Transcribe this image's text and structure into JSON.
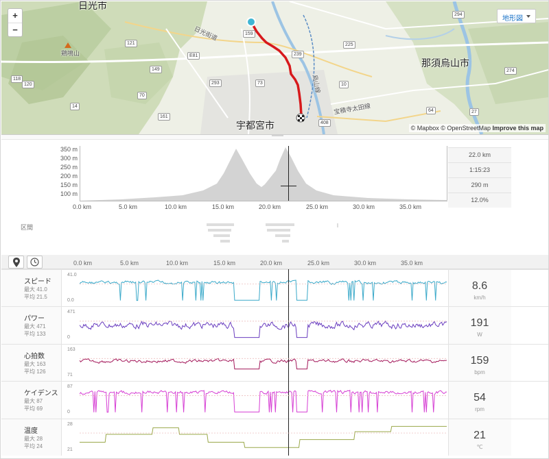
{
  "map": {
    "zoom_in": "+",
    "zoom_out": "−",
    "map_type": "地形図",
    "attribution_1": "© Mapbox © OpenStreetMap ",
    "attribution_2": "Improve this map",
    "labels": {
      "city_main": "宇都宮市",
      "city_east": "那須烏山市",
      "city_nw": "日光市",
      "mountain": "鶏鳴山"
    },
    "road_numbers": [
      "159",
      "121",
      "239",
      "149",
      "293",
      "73",
      "70",
      "225",
      "10",
      "408",
      "294",
      "274",
      "64",
      "27",
      "161",
      "14",
      "120",
      "118"
    ],
    "road_labels": [
      "E81",
      "日光街道",
      "宝積寺太田線",
      "烏山線"
    ]
  },
  "elevation": {
    "y_ticks": [
      "350 m",
      "300 m",
      "250 m",
      "200 m",
      "150 m",
      "100 m"
    ],
    "x_ticks": [
      "0.0 km",
      "5.0 km",
      "10.0 km",
      "15.0 km",
      "20.0 km",
      "25.0 km",
      "30.0 km",
      "35.0 km"
    ],
    "stats": [
      "22.0 km",
      "1:15:23",
      "290 m",
      "12.0%"
    ]
  },
  "segments": {
    "label": "区間"
  },
  "streams": {
    "x_ticks": [
      "0.0 km",
      "5.0 km",
      "10.0 km",
      "15.0 km",
      "20.0 km",
      "25.0 km",
      "30.0 km",
      "35.0 km"
    ],
    "rows": [
      {
        "name": "スピード",
        "max": "最大 41.0",
        "avg": "平均 21.5",
        "top": "41.0",
        "bottom": "0.0",
        "value": "8.6",
        "unit": "km/h",
        "color": "#3aa9c9"
      },
      {
        "name": "パワー",
        "max": "最大 471",
        "avg": "平均 133",
        "top": "471",
        "bottom": "0",
        "value": "191",
        "unit": "W",
        "color": "#6a3dbf"
      },
      {
        "name": "心拍数",
        "max": "最大 163",
        "avg": "平均 126",
        "top": "163",
        "bottom": "71",
        "value": "159",
        "unit": "bpm",
        "color": "#a3175a"
      },
      {
        "name": "ケイデンス",
        "max": "最大 87",
        "avg": "平均 69",
        "top": "87",
        "bottom": "0",
        "value": "54",
        "unit": "rpm",
        "color": "#d63fd4"
      },
      {
        "name": "温度",
        "max": "最大 28",
        "avg": "平均 24",
        "top": "28",
        "bottom": "21",
        "value": "21",
        "unit": "℃",
        "color": "#9aa84a"
      }
    ]
  }
}
